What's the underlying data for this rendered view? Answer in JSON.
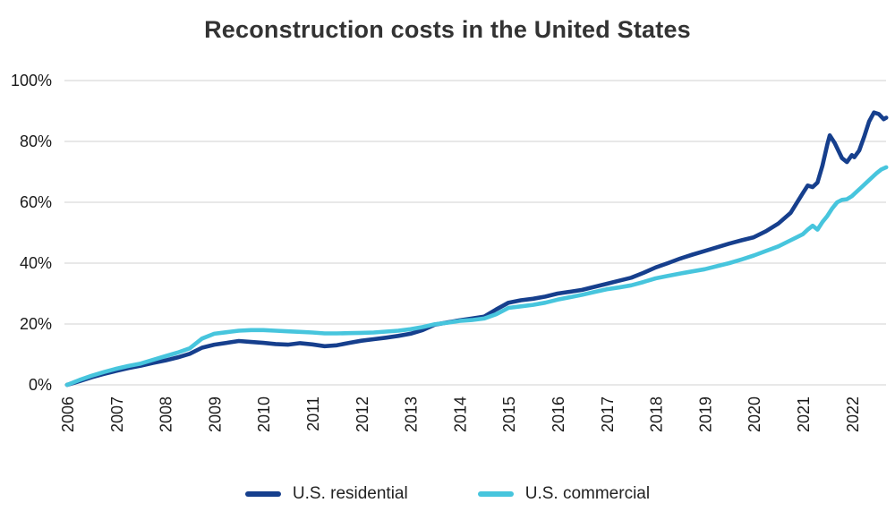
{
  "chart_data": {
    "type": "line",
    "title": "Reconstruction costs in the United States",
    "xlabel": "",
    "ylabel": "",
    "ylim": [
      0,
      100
    ],
    "x_range": [
      2006,
      2022.75
    ],
    "grid": "horizontal-only",
    "gridline_color": "#d9d9d9",
    "legend_position": "bottom-center",
    "y_ticks": [
      {
        "label": "0%",
        "value": 0
      },
      {
        "label": "20%",
        "value": 20
      },
      {
        "label": "40%",
        "value": 40
      },
      {
        "label": "60%",
        "value": 60
      },
      {
        "label": "80%",
        "value": 80
      },
      {
        "label": "100%",
        "value": 100
      }
    ],
    "x_ticks": [
      "2006",
      "2007",
      "2008",
      "2009",
      "2010",
      "2011",
      "2012",
      "2013",
      "2014",
      "2015",
      "2016",
      "2017",
      "2018",
      "2019",
      "2020",
      "2021",
      "2022"
    ],
    "series": [
      {
        "name": "U.S. residential",
        "color": "#163f8d",
        "points": [
          [
            2006.0,
            0
          ],
          [
            2006.25,
            1.2
          ],
          [
            2006.5,
            2.5
          ],
          [
            2006.75,
            3.6
          ],
          [
            2007.0,
            4.6
          ],
          [
            2007.25,
            5.5
          ],
          [
            2007.5,
            6.3
          ],
          [
            2007.75,
            7.2
          ],
          [
            2008.0,
            8.0
          ],
          [
            2008.25,
            9.0
          ],
          [
            2008.5,
            10.2
          ],
          [
            2008.75,
            12.2
          ],
          [
            2009.0,
            13.2
          ],
          [
            2009.25,
            13.8
          ],
          [
            2009.5,
            14.4
          ],
          [
            2009.75,
            14.1
          ],
          [
            2010.0,
            13.8
          ],
          [
            2010.25,
            13.4
          ],
          [
            2010.5,
            13.2
          ],
          [
            2010.75,
            13.7
          ],
          [
            2011.0,
            13.3
          ],
          [
            2011.25,
            12.7
          ],
          [
            2011.5,
            13.0
          ],
          [
            2011.75,
            13.8
          ],
          [
            2012.0,
            14.5
          ],
          [
            2012.25,
            15.0
          ],
          [
            2012.5,
            15.5
          ],
          [
            2012.75,
            16.1
          ],
          [
            2013.0,
            16.8
          ],
          [
            2013.25,
            18.0
          ],
          [
            2013.5,
            19.8
          ],
          [
            2013.75,
            20.5
          ],
          [
            2014.0,
            21.2
          ],
          [
            2014.25,
            21.8
          ],
          [
            2014.5,
            22.4
          ],
          [
            2014.75,
            24.8
          ],
          [
            2015.0,
            27.0
          ],
          [
            2015.25,
            27.8
          ],
          [
            2015.5,
            28.3
          ],
          [
            2015.75,
            29.0
          ],
          [
            2016.0,
            30.0
          ],
          [
            2016.25,
            30.6
          ],
          [
            2016.5,
            31.2
          ],
          [
            2016.75,
            32.2
          ],
          [
            2017.0,
            33.2
          ],
          [
            2017.25,
            34.2
          ],
          [
            2017.5,
            35.2
          ],
          [
            2017.75,
            36.8
          ],
          [
            2018.0,
            38.6
          ],
          [
            2018.25,
            40.0
          ],
          [
            2018.5,
            41.5
          ],
          [
            2018.75,
            42.8
          ],
          [
            2019.0,
            44.0
          ],
          [
            2019.25,
            45.2
          ],
          [
            2019.5,
            46.4
          ],
          [
            2019.75,
            47.5
          ],
          [
            2020.0,
            48.5
          ],
          [
            2020.25,
            50.5
          ],
          [
            2020.5,
            53.0
          ],
          [
            2020.75,
            56.5
          ],
          [
            2021.0,
            63.0
          ],
          [
            2021.1,
            65.5
          ],
          [
            2021.2,
            65.0
          ],
          [
            2021.3,
            66.5
          ],
          [
            2021.4,
            72.0
          ],
          [
            2021.5,
            79.0
          ],
          [
            2021.55,
            82.0
          ],
          [
            2021.65,
            79.5
          ],
          [
            2021.8,
            74.5
          ],
          [
            2021.9,
            73.2
          ],
          [
            2022.0,
            75.5
          ],
          [
            2022.05,
            74.8
          ],
          [
            2022.15,
            77.0
          ],
          [
            2022.25,
            81.5
          ],
          [
            2022.35,
            86.5
          ],
          [
            2022.45,
            89.5
          ],
          [
            2022.55,
            89.0
          ],
          [
            2022.65,
            87.3
          ],
          [
            2022.7,
            87.8
          ]
        ]
      },
      {
        "name": "U.S. commercial",
        "color": "#47c5dd",
        "points": [
          [
            2006.0,
            0
          ],
          [
            2006.25,
            1.6
          ],
          [
            2006.5,
            3.0
          ],
          [
            2006.75,
            4.2
          ],
          [
            2007.0,
            5.3
          ],
          [
            2007.25,
            6.2
          ],
          [
            2007.5,
            7.0
          ],
          [
            2007.75,
            8.2
          ],
          [
            2008.0,
            9.4
          ],
          [
            2008.25,
            10.6
          ],
          [
            2008.5,
            12.0
          ],
          [
            2008.75,
            15.2
          ],
          [
            2009.0,
            16.8
          ],
          [
            2009.25,
            17.3
          ],
          [
            2009.5,
            17.8
          ],
          [
            2009.75,
            18.0
          ],
          [
            2010.0,
            18.0
          ],
          [
            2010.25,
            17.8
          ],
          [
            2010.5,
            17.6
          ],
          [
            2010.75,
            17.4
          ],
          [
            2011.0,
            17.2
          ],
          [
            2011.25,
            16.9
          ],
          [
            2011.5,
            16.9
          ],
          [
            2011.75,
            17.0
          ],
          [
            2012.0,
            17.1
          ],
          [
            2012.25,
            17.2
          ],
          [
            2012.5,
            17.5
          ],
          [
            2012.75,
            17.8
          ],
          [
            2013.0,
            18.3
          ],
          [
            2013.25,
            19.0
          ],
          [
            2013.5,
            19.9
          ],
          [
            2013.75,
            20.4
          ],
          [
            2014.0,
            21.0
          ],
          [
            2014.25,
            21.3
          ],
          [
            2014.5,
            21.8
          ],
          [
            2014.75,
            23.2
          ],
          [
            2015.0,
            25.3
          ],
          [
            2015.25,
            25.8
          ],
          [
            2015.5,
            26.3
          ],
          [
            2015.75,
            27.0
          ],
          [
            2016.0,
            28.0
          ],
          [
            2016.25,
            28.8
          ],
          [
            2016.5,
            29.6
          ],
          [
            2016.75,
            30.5
          ],
          [
            2017.0,
            31.4
          ],
          [
            2017.25,
            32.0
          ],
          [
            2017.5,
            32.7
          ],
          [
            2017.75,
            33.8
          ],
          [
            2018.0,
            35.0
          ],
          [
            2018.25,
            35.8
          ],
          [
            2018.5,
            36.6
          ],
          [
            2018.75,
            37.3
          ],
          [
            2019.0,
            38.0
          ],
          [
            2019.25,
            39.0
          ],
          [
            2019.5,
            40.0
          ],
          [
            2019.75,
            41.2
          ],
          [
            2020.0,
            42.5
          ],
          [
            2020.25,
            44.0
          ],
          [
            2020.5,
            45.5
          ],
          [
            2020.75,
            47.5
          ],
          [
            2021.0,
            49.5
          ],
          [
            2021.1,
            51.0
          ],
          [
            2021.2,
            52.3
          ],
          [
            2021.3,
            51.0
          ],
          [
            2021.4,
            53.5
          ],
          [
            2021.5,
            55.5
          ],
          [
            2021.6,
            58.0
          ],
          [
            2021.7,
            60.0
          ],
          [
            2021.8,
            60.8
          ],
          [
            2021.9,
            61.0
          ],
          [
            2022.0,
            62.0
          ],
          [
            2022.1,
            63.5
          ],
          [
            2022.2,
            65.0
          ],
          [
            2022.3,
            66.5
          ],
          [
            2022.4,
            68.0
          ],
          [
            2022.5,
            69.5
          ],
          [
            2022.6,
            70.8
          ],
          [
            2022.7,
            71.5
          ]
        ]
      }
    ]
  },
  "legend": {
    "items": [
      {
        "label": "U.S. residential"
      },
      {
        "label": "U.S. commercial"
      }
    ]
  }
}
